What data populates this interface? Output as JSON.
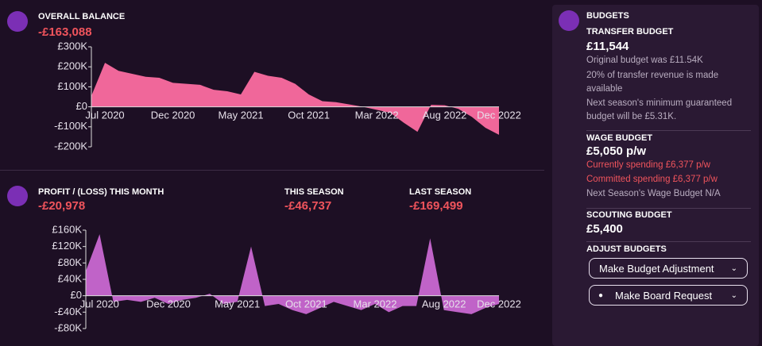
{
  "chart_data": [
    {
      "type": "area",
      "color": "#f0679a",
      "categories": [
        null,
        "Jul 2020",
        null,
        null,
        null,
        null,
        "Dec 2020",
        null,
        null,
        null,
        null,
        "May 2021",
        null,
        null,
        null,
        null,
        "Oct 2021",
        null,
        null,
        null,
        null,
        "Mar 2022",
        null,
        null,
        null,
        null,
        "Aug 2022",
        null,
        null,
        null,
        "Dec 2022"
      ],
      "values": [
        55,
        220,
        180,
        165,
        150,
        145,
        120,
        115,
        110,
        85,
        78,
        62,
        175,
        155,
        145,
        115,
        62,
        28,
        23,
        12,
        0,
        -15,
        -30,
        -80,
        -125,
        10,
        8,
        -10,
        -50,
        -105,
        -140
      ],
      "ylim": [
        -200,
        300
      ],
      "yticks": [
        {
          "value": -200,
          "label": "-£200K"
        },
        {
          "value": -100,
          "label": "-£100K"
        },
        {
          "value": 0,
          "label": "£0"
        },
        {
          "value": 100,
          "label": "£100K"
        },
        {
          "value": 200,
          "label": "£200K"
        },
        {
          "value": 300,
          "label": "£300K"
        }
      ]
    },
    {
      "type": "area",
      "color": "#c063c8",
      "categories": [
        null,
        "Jul 2020",
        null,
        null,
        null,
        null,
        "Dec 2020",
        null,
        null,
        null,
        null,
        "May 2021",
        null,
        null,
        null,
        null,
        "Oct 2021",
        null,
        null,
        null,
        null,
        "Mar 2022",
        null,
        null,
        null,
        null,
        "Aug 2022",
        null,
        null,
        null,
        "Dec 2022"
      ],
      "values": [
        60,
        150,
        -15,
        -10,
        -15,
        -5,
        -20,
        -10,
        -5,
        5,
        -20,
        -15,
        120,
        -25,
        -20,
        -35,
        -45,
        -30,
        -15,
        -25,
        -35,
        -20,
        -40,
        -25,
        -25,
        140,
        -35,
        -40,
        -45,
        -30,
        -20
      ],
      "ylim": [
        -80,
        160
      ],
      "yticks": [
        {
          "value": -80,
          "label": "-£80K"
        },
        {
          "value": -40,
          "label": "-£40K"
        },
        {
          "value": 0,
          "label": "£0"
        },
        {
          "value": 40,
          "label": "£40K"
        },
        {
          "value": 80,
          "label": "£80K"
        },
        {
          "value": 120,
          "label": "£120K"
        },
        {
          "value": 160,
          "label": "£160K"
        }
      ]
    }
  ],
  "overall_balance": {
    "title": "OVERALL BALANCE",
    "value": "-£163,088"
  },
  "profit": {
    "title": "PROFIT / (LOSS) THIS MONTH",
    "value": "-£20,978"
  },
  "this_season": {
    "title": "THIS SEASON",
    "value": "-£46,737"
  },
  "last_season": {
    "title": "LAST SEASON",
    "value": "-£169,499"
  },
  "budgets": {
    "title": "BUDGETS",
    "transfer": {
      "title": "TRANSFER BUDGET",
      "value": "£11,544",
      "lines": [
        "Original budget was £11.54K",
        "20% of transfer revenue is made available",
        "Next season's minimum guaranteed budget will be £5.31K."
      ]
    },
    "wage": {
      "title": "WAGE BUDGET",
      "value": "£5,050 p/w",
      "warnings": [
        "Currently spending £6,377 p/w",
        "Committed spending £6,377 p/w"
      ],
      "note": "Next Season's Wage Budget N/A"
    },
    "scouting": {
      "title": "SCOUTING BUDGET",
      "value": "£5,400"
    },
    "adjust": {
      "title": "ADJUST BUDGETS",
      "buttons": [
        "Make Budget Adjustment",
        "Make Board Request"
      ]
    }
  }
}
